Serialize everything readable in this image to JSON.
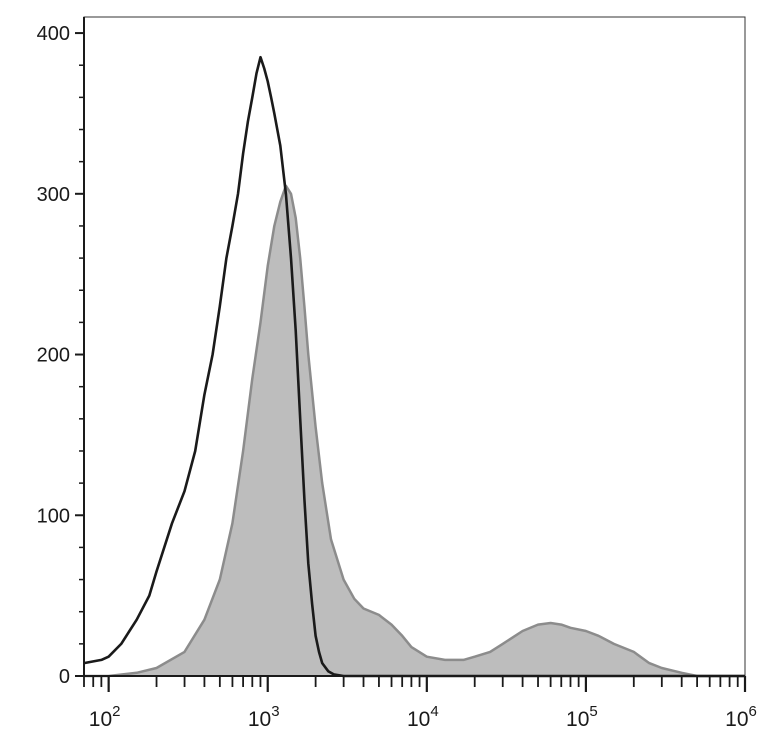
{
  "chart_data": {
    "type": "area",
    "title": "",
    "xlabel": "",
    "ylabel": "",
    "x_scale": "log",
    "xlim": [
      70,
      1000000
    ],
    "ylim": [
      0,
      410
    ],
    "y_ticks": [
      {
        "value": 0,
        "label": "0"
      },
      {
        "value": 100,
        "label": "100"
      },
      {
        "value": 200,
        "label": "200"
      },
      {
        "value": 300,
        "label": "300"
      },
      {
        "value": 400,
        "label": "400"
      }
    ],
    "x_ticks": [
      {
        "value": 100,
        "base": "10",
        "exp": "2"
      },
      {
        "value": 1000,
        "base": "10",
        "exp": "3"
      },
      {
        "value": 10000,
        "base": "10",
        "exp": "4"
      },
      {
        "value": 100000,
        "base": "10",
        "exp": "5"
      },
      {
        "value": 1000000,
        "base": "10",
        "exp": "6"
      }
    ],
    "grid": false,
    "legend": "none",
    "series": [
      {
        "style": "filled",
        "fill_color": "#bdbdbd",
        "line_color": "#8c8c8c",
        "x": [
          70,
          100,
          150,
          200,
          300,
          400,
          500,
          600,
          700,
          800,
          900,
          1000,
          1100,
          1200,
          1300,
          1400,
          1500,
          1600,
          1700,
          1800,
          2000,
          2200,
          2500,
          3000,
          3500,
          4000,
          5000,
          6000,
          7000,
          8000,
          10000,
          13000,
          17000,
          20000,
          25000,
          30000,
          40000,
          50000,
          60000,
          70000,
          80000,
          100000,
          120000,
          150000,
          200000,
          250000,
          300000,
          400000,
          500000,
          700000,
          1000000
        ],
        "y": [
          0,
          0,
          2,
          5,
          15,
          35,
          60,
          95,
          140,
          185,
          220,
          255,
          280,
          295,
          305,
          300,
          285,
          260,
          230,
          200,
          155,
          120,
          85,
          60,
          48,
          42,
          38,
          32,
          25,
          18,
          12,
          10,
          10,
          12,
          15,
          20,
          28,
          32,
          33,
          32,
          30,
          28,
          25,
          20,
          15,
          8,
          5,
          2,
          0,
          0,
          0
        ]
      },
      {
        "style": "line",
        "line_color": "#1a1a1a",
        "x": [
          70,
          90,
          100,
          120,
          150,
          180,
          200,
          250,
          300,
          350,
          400,
          450,
          500,
          550,
          600,
          650,
          700,
          750,
          800,
          850,
          900,
          950,
          1000,
          1050,
          1100,
          1200,
          1300,
          1400,
          1500,
          1600,
          1700,
          1800,
          1900,
          2000,
          2100,
          2200,
          2400,
          2600,
          3000,
          3500,
          4000,
          5000,
          6000,
          1000000
        ],
        "y": [
          8,
          10,
          12,
          20,
          35,
          50,
          65,
          95,
          115,
          140,
          175,
          200,
          230,
          260,
          280,
          300,
          325,
          345,
          360,
          375,
          385,
          378,
          370,
          360,
          350,
          330,
          300,
          260,
          215,
          160,
          110,
          70,
          45,
          25,
          15,
          8,
          3,
          1,
          0,
          0,
          0,
          0,
          0,
          0
        ]
      }
    ]
  }
}
